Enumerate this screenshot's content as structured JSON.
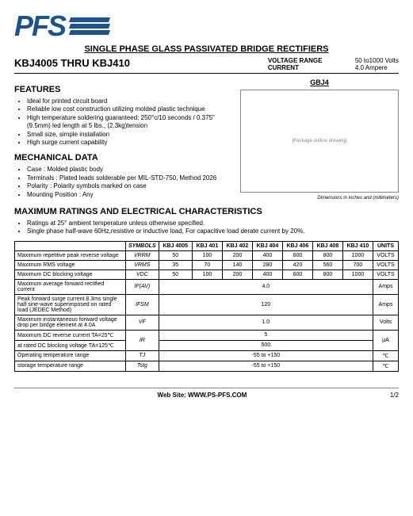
{
  "logo_text": "PFS",
  "main_title": "SINGLE PHASE GLASS PASSIVATED BRIDGE RECTIFIERS",
  "part_range": "KBJ4005 THRU  KBJ410",
  "voltage_label": "VOLTAGE RANGE",
  "voltage_value": "50 to1000 Volts",
  "current_label": "CURRENT",
  "current_value": "4.0 Ampere",
  "features_title": "FEATURES",
  "features": [
    "Ideal for printed circuit board",
    "Reliable low cost construction utilizing molded plastic technique",
    "High temperature soldering guaranteed: 250°c/10 seconds / 0.375\"(9.5mm) led length at 5 lbs., (2.3kg)tension",
    "Small size, simple installation",
    "High surge current capability"
  ],
  "mech_title": "MECHANICAL DATA",
  "mech": [
    "Case : Molded plastic body",
    "Terminals : Plated leads solderable per MIL-STD-750, Method 2026",
    "Polarity : Polarity symbols marked on case",
    "Mounting Position  : Any"
  ],
  "package_label": "GBJ4",
  "package_placeholder": "[Package outline drawing]",
  "dim_note": "Dimensions in inches and (millimeters)",
  "ratings_title": "MAXIMUM RATINGS AND ELECTRICAL CHARACTERISTICS",
  "ratings_notes": [
    "Ratings at 25° ambient temperature unless otherwise specified.",
    "Single phase half-wave 60Hz,resistive or inductive load, For capacitive load derate current by 20%."
  ],
  "table": {
    "sym_header": "SYMBOLS",
    "parts": [
      "KBJ 4005",
      "KBJ 401",
      "KBJ 402",
      "KBJ 404",
      "KBJ 406",
      "KBJ 408",
      "KBJ 410"
    ],
    "units_header": "UNITS",
    "rows": [
      {
        "param": "Maximum repetitive peak reverse voltage",
        "sym": "VRRM",
        "vals": [
          "50",
          "100",
          "200",
          "400",
          "600",
          "800",
          "1000"
        ],
        "unit": "VOLTS"
      },
      {
        "param": "Maximum RMS voltage",
        "sym": "VRMS",
        "vals": [
          "35",
          "70",
          "140",
          "280",
          "420",
          "560",
          "700"
        ],
        "unit": "VOLTS"
      },
      {
        "param": "Maximum DC blocking voltage",
        "sym": "VDC",
        "vals": [
          "50",
          "100",
          "200",
          "400",
          "600",
          "800",
          "1000"
        ],
        "unit": "VOLTS"
      },
      {
        "param": "Maximum average forward rectified current",
        "sym": "IF(AV)",
        "span": "4.0",
        "unit": "Amps"
      },
      {
        "param": "Peak forward surge current 8.3ms single half sine-wave superimposed on rated load (JEDEC Method)",
        "sym": "IFSM",
        "span": "120",
        "unit": "Amps"
      },
      {
        "param": "Maximum instantaneous forward voltage drop per birdge element at 4.0A",
        "sym": "VF",
        "span": "1.0",
        "unit": "Volts"
      },
      {
        "param": "Maximum DC reverse current     TA=25℃",
        "sym": "IR",
        "span": "5",
        "unit": "μA",
        "rowspan": 2
      },
      {
        "param": "at rated DC blocking voltage    TA=125℃",
        "sym": "",
        "span": "500",
        "unit": ""
      },
      {
        "param": "Operating temperature range",
        "sym": "TJ",
        "span": "-55 to +150",
        "unit": "℃"
      },
      {
        "param": "storage temperature range",
        "sym": "Tstg",
        "span": "-55 to +150",
        "unit": "℃"
      }
    ]
  },
  "footer_label": "Web Site:",
  "footer_url": "WWW.PS-PFS.COM",
  "page_num": "1/2"
}
